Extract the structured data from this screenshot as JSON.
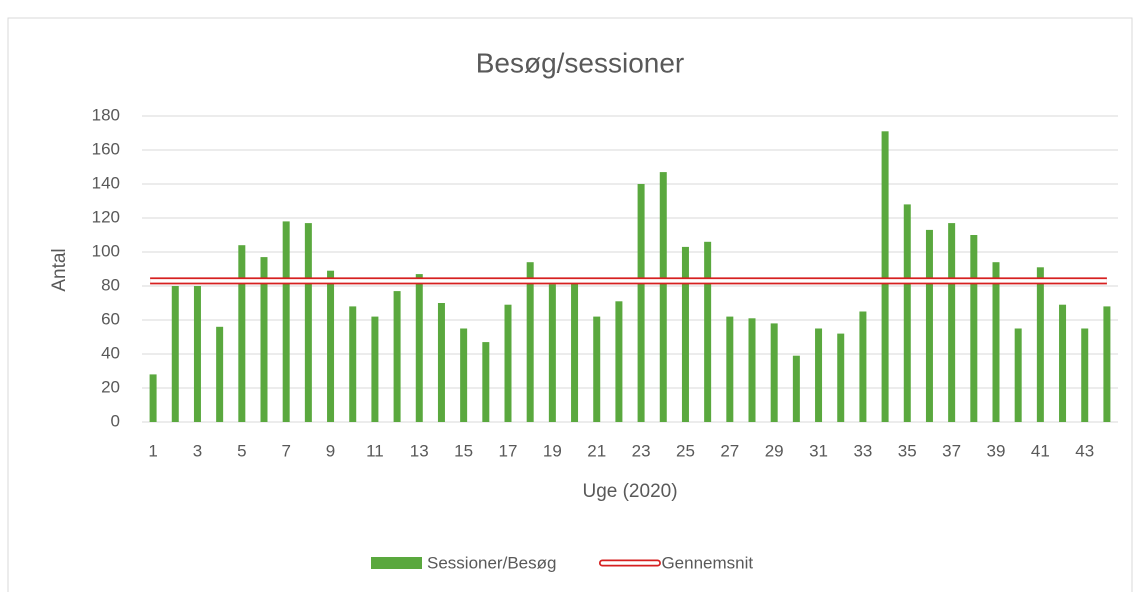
{
  "chart_data": {
    "type": "bar",
    "title": "Besøg/sessioner",
    "x_label": "Uge (2020)",
    "y_label": "Antal",
    "categories": [
      1,
      null,
      3,
      null,
      5,
      null,
      7,
      null,
      9,
      null,
      11,
      null,
      13,
      null,
      15,
      null,
      17,
      null,
      19,
      null,
      21,
      null,
      23,
      null,
      25,
      null,
      27,
      null,
      29,
      null,
      31,
      null,
      33,
      null,
      35,
      null,
      37,
      null,
      39,
      null,
      41,
      null,
      43,
      null
    ],
    "series": [
      {
        "name": "Sessioner/Besøg",
        "type": "bar",
        "color": "#5aa83e",
        "values": [
          28,
          80,
          80,
          56,
          104,
          97,
          118,
          117,
          89,
          68,
          62,
          77,
          87,
          70,
          55,
          47,
          69,
          94,
          81,
          85,
          62,
          71,
          140,
          147,
          103,
          106,
          62,
          61,
          58,
          39,
          55,
          52,
          65,
          171,
          128,
          113,
          117,
          110,
          94,
          55,
          91,
          69,
          55,
          68
        ]
      },
      {
        "name": "Gennemsnit",
        "type": "line",
        "color": "#d62020",
        "values": [
          83,
          83,
          83,
          83,
          83,
          83,
          83,
          83,
          83,
          83,
          83,
          83,
          83,
          83,
          83,
          83,
          83,
          83,
          83,
          83,
          83,
          83,
          83,
          83,
          83,
          83,
          83,
          83,
          83,
          83,
          83,
          83,
          83,
          83,
          83,
          83,
          83,
          83,
          83,
          83,
          83,
          83,
          83,
          83
        ]
      }
    ],
    "ylim": [
      0,
      180
    ],
    "yticks": [
      0,
      20,
      40,
      60,
      80,
      100,
      120,
      140,
      160,
      180
    ],
    "grid": true,
    "legend": "bottom"
  }
}
